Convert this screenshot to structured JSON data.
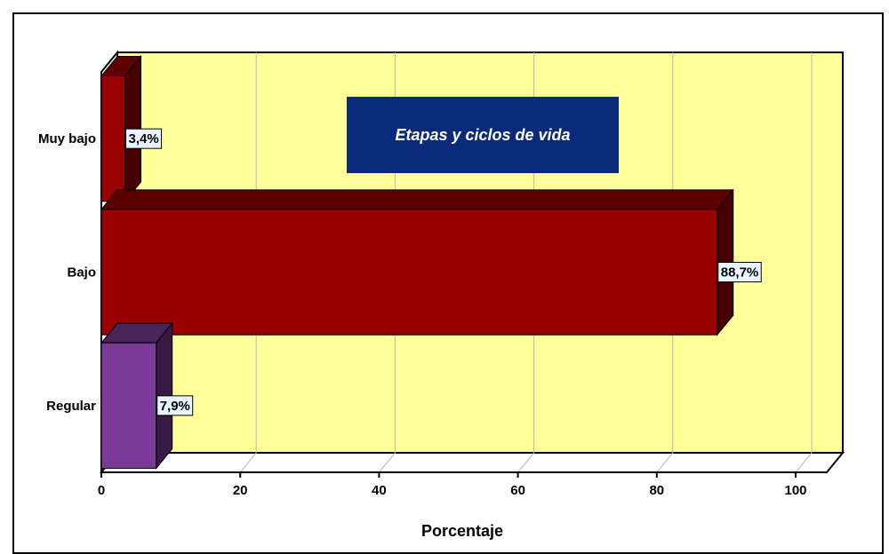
{
  "chart_data": {
    "type": "bar",
    "orientation": "horizontal",
    "three_d": true,
    "categories": [
      "Muy bajo",
      "Bajo",
      "Regular"
    ],
    "values": [
      3.4,
      88.7,
      7.9
    ],
    "value_labels": [
      "3,4%",
      "88,7%",
      "7,9%"
    ],
    "bar_colors": [
      "#990000",
      "#990000",
      "#7b3a96"
    ],
    "xlabel": "Porcentaje",
    "ylabel": "",
    "xlim": [
      0,
      100
    ],
    "xticks": [
      0,
      20,
      40,
      60,
      80,
      100
    ],
    "xtick_labels": [
      "0",
      "20",
      "40",
      "60",
      "80",
      "100"
    ],
    "grid": "vertical",
    "annotation": "Etapas y ciclos de vida",
    "colors": {
      "plot_background": "#ffff99",
      "annotation_box": "#0a2a7a",
      "data_label_box": "#e8f4ff",
      "grid": "#b8b8b8"
    }
  }
}
